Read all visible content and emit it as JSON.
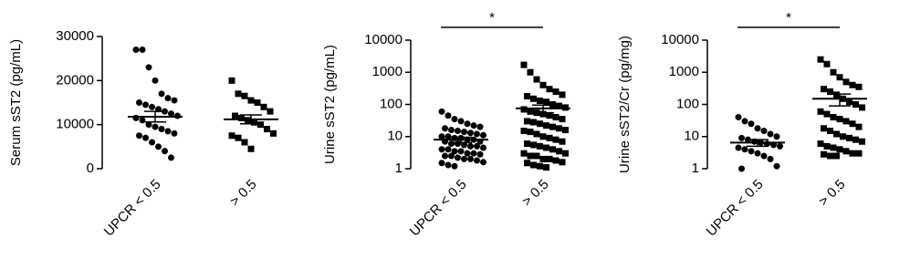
{
  "chart_data": [
    {
      "type": "dot",
      "y_label": "Serum sST2 (pg/mL)",
      "log_scale": false,
      "categories": [
        "UPCR < 0.5",
        "> 0.5"
      ],
      "ylim": [
        0,
        30000
      ],
      "yticks": [
        0,
        10000,
        20000,
        30000
      ],
      "color": "#000000",
      "groups": [
        {
          "marker": "circle",
          "values": [
            27000,
            27000,
            23000,
            20000,
            17000,
            16000,
            15500,
            15000,
            14500,
            14000,
            13500,
            13000,
            12500,
            12000,
            11500,
            11000,
            10000,
            9500,
            9000,
            8500,
            8000,
            7500,
            7000,
            6000,
            5000,
            4000,
            2500
          ],
          "mean": 11800,
          "error": 1200
        },
        {
          "marker": "square",
          "values": [
            20000,
            17000,
            16500,
            15500,
            15000,
            14000,
            13000,
            12000,
            11500,
            11000,
            10500,
            10000,
            9000,
            8000,
            7500,
            7000,
            6000,
            4500
          ],
          "mean": 11200,
          "error": 1000
        }
      ]
    },
    {
      "type": "dot",
      "y_label": "Urine sST2 (pg/mL)",
      "log_scale": true,
      "categories": [
        "UPCR < 0.5",
        "> 0.5"
      ],
      "ylim": [
        1,
        10000
      ],
      "yticks": [
        1,
        10,
        100,
        1000,
        10000
      ],
      "color": "#000000",
      "annotation": "*",
      "groups": [
        {
          "marker": "circle",
          "values": [
            60,
            45,
            35,
            30,
            25,
            22,
            20,
            18,
            16,
            15,
            14,
            13,
            12,
            11,
            10,
            10,
            9,
            9,
            8,
            8,
            7,
            7,
            6,
            6,
            5.5,
            5,
            5,
            4.5,
            4,
            4,
            3.5,
            3.5,
            3,
            3,
            2.8,
            2.5,
            2.5,
            2.2,
            2,
            2,
            1.8,
            1.6,
            1.5,
            1.3,
            1.2
          ],
          "mean": 8,
          "error": 1.5
        },
        {
          "marker": "square",
          "values": [
            1700,
            1000,
            600,
            400,
            300,
            250,
            200,
            180,
            150,
            130,
            120,
            100,
            90,
            80,
            70,
            60,
            55,
            50,
            45,
            40,
            35,
            30,
            28,
            25,
            22,
            20,
            18,
            16,
            15,
            14,
            12,
            10,
            9,
            8,
            7,
            6,
            5.5,
            5,
            4.5,
            4,
            3.5,
            3,
            3,
            2.5,
            2.5,
            2,
            2,
            1.8,
            1.6,
            1.5,
            1.3,
            1.2,
            1.1
          ],
          "mean": 75,
          "error": 20
        }
      ]
    },
    {
      "type": "dot",
      "y_label": "Urine sST2/Cr (pg/mg)",
      "log_scale": true,
      "categories": [
        "UPCR < 0.5",
        "> 0.5"
      ],
      "ylim": [
        1,
        10000
      ],
      "yticks": [
        1,
        10,
        100,
        1000,
        10000
      ],
      "color": "#000000",
      "annotation": "*",
      "groups": [
        {
          "marker": "circle",
          "values": [
            40,
            30,
            25,
            18,
            15,
            12,
            10,
            9,
            8,
            7,
            6.5,
            6,
            5.5,
            5,
            4.5,
            4,
            3.5,
            3,
            2.5,
            2,
            1.2,
            1
          ],
          "mean": 6.5,
          "error": 1.5
        },
        {
          "marker": "square",
          "values": [
            2500,
            1800,
            1000,
            700,
            500,
            400,
            350,
            300,
            250,
            200,
            150,
            120,
            100,
            80,
            60,
            50,
            40,
            35,
            30,
            25,
            20,
            18,
            15,
            12,
            10,
            9,
            8,
            7,
            6,
            5,
            4.5,
            4,
            3.5,
            3,
            3,
            2.8,
            2.5,
            2.5
          ],
          "mean": 150,
          "error": 60
        }
      ]
    }
  ]
}
